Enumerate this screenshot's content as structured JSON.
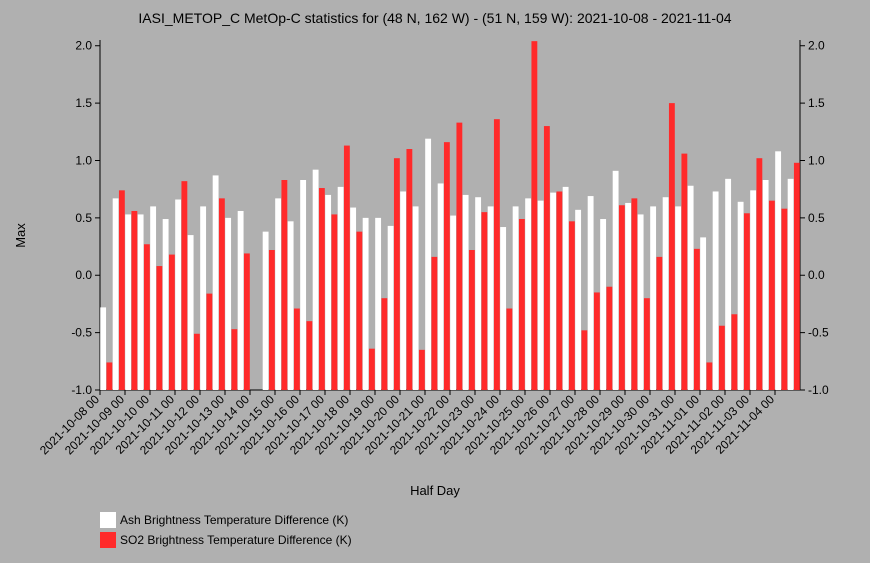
{
  "chart_data": {
    "type": "bar",
    "title": "IASI_METOP_C MetOp-C statistics for (48 N, 162 W) - (51 N, 159 W): 2021-10-08 - 2021-11-04",
    "xlabel": "Half Day",
    "ylabel": "Max",
    "ylim": [
      -1.0,
      2.05
    ],
    "yticks": [
      "2.0",
      "1.5",
      "1.0",
      "0.5",
      "0.0",
      "-0.5",
      "-1.0"
    ],
    "ytick_values": [
      2.0,
      1.5,
      1.0,
      0.5,
      0.0,
      -0.5,
      -1.0
    ],
    "xtick_labels": [
      "2021-10-08 00",
      "2021-10-09 00",
      "2021-10-10 00",
      "2021-10-11 00",
      "2021-10-12 00",
      "2021-10-13 00",
      "2021-10-14 00",
      "2021-10-15 00",
      "2021-10-16 00",
      "2021-10-17 00",
      "2021-10-18 00",
      "2021-10-19 00",
      "2021-10-20 00",
      "2021-10-21 00",
      "2021-10-22 00",
      "2021-10-23 00",
      "2021-10-24 00",
      "2021-10-25 00",
      "2021-10-26 00",
      "2021-10-27 00",
      "2021-10-28 00",
      "2021-10-29 00",
      "2021-10-30 00",
      "2021-10-31 00",
      "2021-11-01 00",
      "2021-11-02 00",
      "2021-11-03 00",
      "2021-11-04 00"
    ],
    "legend_placement": "bottom-left",
    "series": [
      {
        "name": "Ash Brightness Temperature Difference (K)",
        "color": "#ffffff",
        "values": [
          -0.28,
          0.67,
          0.53,
          0.53,
          0.6,
          0.49,
          0.66,
          0.35,
          0.6,
          0.87,
          0.5,
          0.56,
          null,
          0.38,
          0.67,
          0.47,
          0.83,
          0.92,
          0.7,
          0.77,
          0.59,
          0.5,
          0.5,
          0.43,
          0.73,
          0.6,
          1.19,
          0.8,
          0.52,
          0.7,
          0.68,
          0.6,
          0.42,
          0.6,
          0.67,
          0.65,
          0.72,
          0.77,
          0.57,
          0.69,
          0.49,
          0.91,
          0.63,
          0.53,
          0.6,
          0.68,
          0.6,
          0.78,
          0.33,
          0.73,
          0.84,
          0.64,
          0.74,
          0.83,
          1.08,
          0.84
        ]
      },
      {
        "name": "SO2 Brightness Temperature Difference (K)",
        "color": "#ff2a2a",
        "values": [
          -0.76,
          0.74,
          0.56,
          0.27,
          0.08,
          0.18,
          0.82,
          -0.51,
          -0.16,
          0.67,
          -0.47,
          0.19,
          null,
          0.22,
          0.83,
          -0.29,
          -0.4,
          0.76,
          0.53,
          1.13,
          0.38,
          -0.64,
          -0.2,
          1.02,
          1.1,
          -0.65,
          0.16,
          1.16,
          1.33,
          0.22,
          0.55,
          1.36,
          -0.29,
          0.49,
          2.04,
          1.3,
          0.73,
          0.47,
          -0.48,
          -0.15,
          -0.1,
          0.61,
          0.67,
          -0.2,
          0.16,
          1.5,
          1.06,
          0.23,
          -0.76,
          -0.44,
          -0.34,
          0.54,
          1.02,
          0.65,
          0.58,
          0.98
        ]
      }
    ]
  }
}
